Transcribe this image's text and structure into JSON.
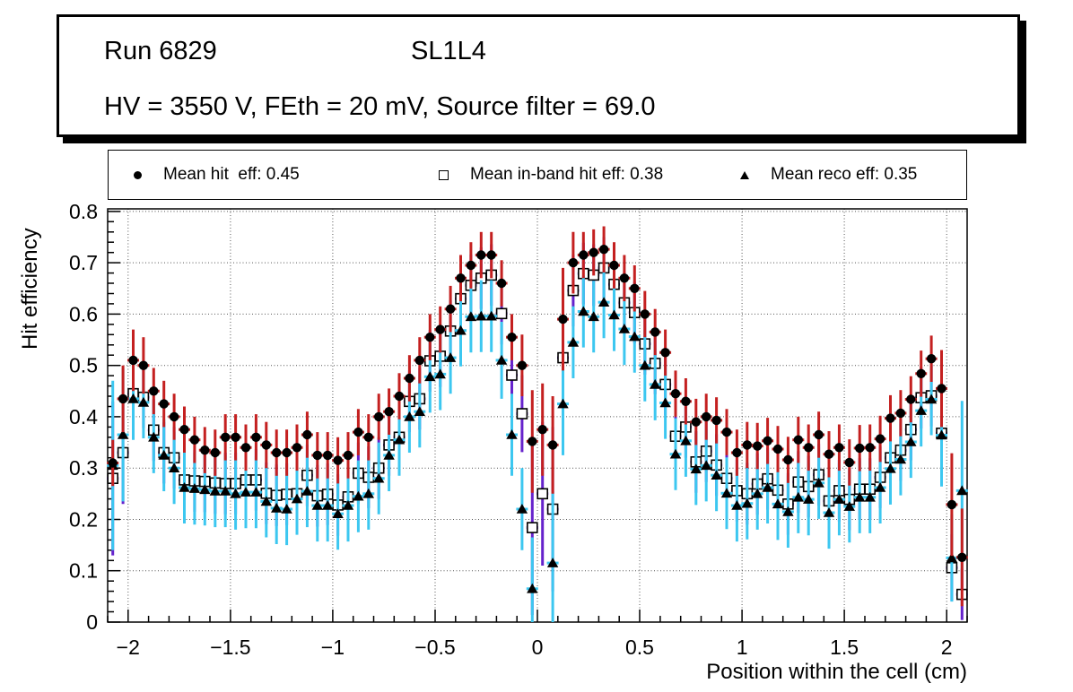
{
  "title_box": {
    "run": "Run 6829",
    "chamber": "SL1L4",
    "conditions": "HV = 3550 V, FEth = 20 mV, Source filter = 69.0"
  },
  "legend": [
    {
      "marker": "filled-circle",
      "label": "Mean hit  eff: 0.45"
    },
    {
      "marker": "open-square",
      "label": "Mean in-band hit eff: 0.38"
    },
    {
      "marker": "filled-triangle",
      "label": "Mean reco eff: 0.35"
    }
  ],
  "chart_data": {
    "type": "scatter",
    "xlabel": "Position within the cell (cm)",
    "ylabel": "Hit efficiency",
    "xlim": [
      -2.1,
      2.1
    ],
    "ylim": [
      0,
      0.805
    ],
    "grid": "dotted",
    "x_ticks": [
      -2,
      -1.5,
      -1,
      -0.5,
      0,
      0.5,
      1,
      1.5,
      2
    ],
    "x_tick_labels": [
      "−2",
      "−1.5",
      "−1",
      "−0.5",
      "0",
      "0.5",
      "1",
      "1.5",
      "2"
    ],
    "y_ticks": [
      0,
      0.1,
      0.2,
      0.3,
      0.4,
      0.5,
      0.6,
      0.7,
      0.8
    ],
    "y_tick_labels": [
      "0",
      "0.1",
      "0.2",
      "0.3",
      "0.4",
      "0.5",
      "0.6",
      "0.7",
      "0.8"
    ],
    "x_minor_step": 0.1,
    "y_minor_step": 0.02,
    "x": [
      -2.075,
      -2.025,
      -1.975,
      -1.925,
      -1.875,
      -1.825,
      -1.775,
      -1.725,
      -1.675,
      -1.625,
      -1.575,
      -1.525,
      -1.475,
      -1.425,
      -1.375,
      -1.325,
      -1.275,
      -1.225,
      -1.175,
      -1.125,
      -1.075,
      -1.025,
      -0.975,
      -0.925,
      -0.875,
      -0.825,
      -0.775,
      -0.725,
      -0.675,
      -0.625,
      -0.575,
      -0.525,
      -0.475,
      -0.425,
      -0.375,
      -0.325,
      -0.275,
      -0.225,
      -0.175,
      -0.125,
      -0.075,
      -0.025,
      0.025,
      0.075,
      0.125,
      0.175,
      0.225,
      0.275,
      0.325,
      0.375,
      0.425,
      0.475,
      0.525,
      0.575,
      0.625,
      0.675,
      0.725,
      0.775,
      0.825,
      0.875,
      0.925,
      0.975,
      1.025,
      1.075,
      1.125,
      1.175,
      1.225,
      1.275,
      1.325,
      1.375,
      1.425,
      1.475,
      1.525,
      1.575,
      1.625,
      1.675,
      1.725,
      1.775,
      1.825,
      1.875,
      1.925,
      1.975,
      2.025,
      2.075
    ],
    "series": [
      {
        "name": "mean-hit-eff",
        "legend": "Mean hit  eff: 0.45",
        "marker": "filled-circle",
        "marker_color": "#000000",
        "error_color": "#c42020",
        "err_default": 0.045,
        "err_special": {
          "1": 0.065,
          "2": 0.06,
          "3": 0.055,
          "40": 0.06,
          "41": 0.1,
          "42": 0.09,
          "43": 0.095,
          "44": 0.1,
          "45": 0.06,
          "81": 0.075,
          "82": 0.1,
          "83": 0.095
        },
        "values": [
          0.31,
          0.435,
          0.51,
          0.5,
          0.45,
          0.425,
          0.4,
          0.375,
          0.355,
          0.335,
          0.33,
          0.36,
          0.36,
          0.34,
          0.36,
          0.345,
          0.33,
          0.33,
          0.34,
          0.365,
          0.325,
          0.325,
          0.315,
          0.325,
          0.37,
          0.36,
          0.4,
          0.41,
          0.44,
          0.475,
          0.51,
          0.555,
          0.57,
          0.61,
          0.67,
          0.695,
          0.715,
          0.715,
          0.66,
          0.555,
          0.5,
          0.352,
          0.375,
          0.345,
          0.59,
          0.7,
          0.715,
          0.72,
          0.726,
          0.695,
          0.67,
          0.65,
          0.6,
          0.565,
          0.525,
          0.445,
          0.43,
          0.39,
          0.4,
          0.393,
          0.37,
          0.33,
          0.345,
          0.343,
          0.353,
          0.337,
          0.316,
          0.355,
          0.34,
          0.365,
          0.327,
          0.34,
          0.311,
          0.339,
          0.34,
          0.357,
          0.397,
          0.407,
          0.434,
          0.484,
          0.513,
          0.455,
          0.229,
          0.126
        ]
      },
      {
        "name": "mean-in-band-hit-eff",
        "legend": "Mean in-band hit eff: 0.38",
        "marker": "open-square",
        "marker_color": "#000000",
        "error_color": "#6622cc",
        "err_default": 0.06,
        "err_special": {
          "0": 0.15,
          "1": 0.1,
          "2": 0.065,
          "39": 0.065,
          "40": 0.075,
          "41": 0.17,
          "42": 0.14,
          "43": 0.16,
          "44": 0.12,
          "45": 0.07,
          "81": 0.09,
          "82": 0.065,
          "83": 0.05
        },
        "values": [
          0.28,
          0.33,
          0.445,
          0.438,
          0.374,
          0.33,
          0.32,
          0.277,
          0.275,
          0.274,
          0.271,
          0.27,
          0.27,
          0.277,
          0.277,
          0.251,
          0.247,
          0.249,
          0.25,
          0.286,
          0.246,
          0.249,
          0.228,
          0.244,
          0.29,
          0.282,
          0.3,
          0.345,
          0.36,
          0.43,
          0.435,
          0.509,
          0.518,
          0.567,
          0.63,
          0.656,
          0.67,
          0.676,
          0.601,
          0.481,
          0.406,
          0.184,
          0.25,
          0.22,
          0.515,
          0.646,
          0.679,
          0.676,
          0.69,
          0.658,
          0.622,
          0.603,
          0.542,
          0.504,
          0.463,
          0.362,
          0.38,
          0.312,
          0.333,
          0.306,
          0.28,
          0.256,
          0.25,
          0.269,
          0.279,
          0.257,
          0.23,
          0.273,
          0.264,
          0.287,
          0.236,
          0.256,
          0.239,
          0.259,
          0.259,
          0.282,
          0.32,
          0.335,
          0.375,
          0.437,
          0.441,
          0.368,
          0.106,
          0.054
        ]
      },
      {
        "name": "mean-reco-eff",
        "legend": "Mean reco eff: 0.35",
        "marker": "filled-triangle",
        "marker_color": "#000000",
        "error_color": "#3cc7f0",
        "err_default": 0.07,
        "err_special": {
          "0": 0.165,
          "1": 0.13,
          "2": 0.08,
          "38": 0.075,
          "39": 0.08,
          "40": 0.08,
          "41": 0.1,
          "43": 0.14,
          "44": 0.1,
          "81": 0.1,
          "82": 0.085,
          "83": 0.175
        },
        "values": [
          0.305,
          0.365,
          0.435,
          0.428,
          0.36,
          0.325,
          0.3,
          0.262,
          0.26,
          0.258,
          0.255,
          0.255,
          0.25,
          0.253,
          0.253,
          0.235,
          0.222,
          0.22,
          0.24,
          0.255,
          0.227,
          0.227,
          0.211,
          0.227,
          0.245,
          0.25,
          0.28,
          0.325,
          0.355,
          0.4,
          0.41,
          0.478,
          0.483,
          0.515,
          0.568,
          0.595,
          0.596,
          0.596,
          0.51,
          0.365,
          0.22,
          0.065,
          null,
          0.115,
          0.425,
          0.545,
          0.605,
          0.595,
          0.623,
          0.598,
          0.571,
          0.556,
          0.5,
          0.463,
          0.427,
          0.327,
          0.353,
          0.298,
          0.305,
          0.286,
          0.251,
          0.227,
          0.231,
          0.25,
          0.262,
          0.23,
          0.215,
          0.243,
          0.239,
          0.271,
          0.213,
          0.239,
          0.225,
          0.243,
          0.243,
          0.262,
          0.299,
          0.317,
          0.351,
          0.412,
          0.434,
          0.364,
          0.125,
          0.256
        ]
      }
    ]
  },
  "colors": {
    "background": "#ffffff",
    "frame": "#000000",
    "hit_error": "#c42020",
    "inband_error": "#6622cc",
    "reco_error": "#3cc7f0",
    "marker": "#000000"
  }
}
